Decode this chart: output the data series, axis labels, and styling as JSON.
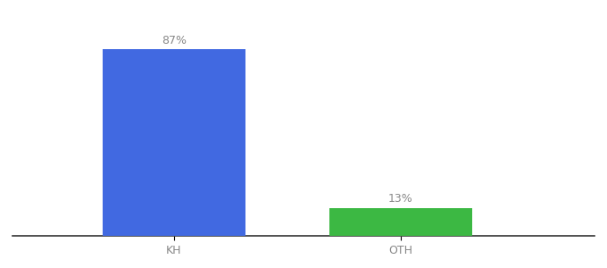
{
  "categories": [
    "KH",
    "OTH"
  ],
  "values": [
    87,
    13
  ],
  "bar_colors": [
    "#4169e1",
    "#3cb843"
  ],
  "label_texts": [
    "87%",
    "13%"
  ],
  "ylim": [
    0,
    100
  ],
  "background_color": "#ffffff",
  "label_fontsize": 9,
  "tick_fontsize": 9,
  "x_positions": [
    0.3,
    0.65
  ],
  "bar_width": 0.22
}
